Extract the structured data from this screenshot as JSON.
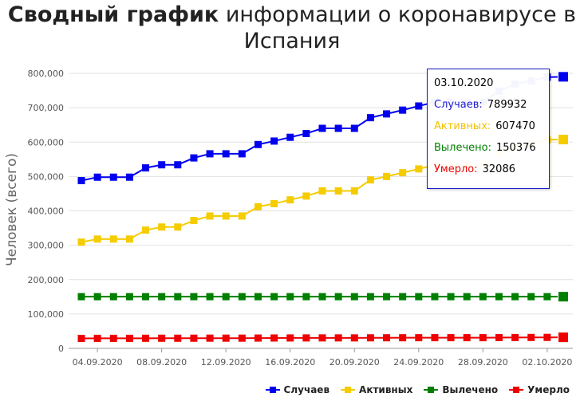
{
  "title_bold": "Сводный график",
  "title_rest": " информации о коронавирусе в",
  "title_line2": "Испания",
  "colors": {
    "cases": "#0000ee",
    "active": "#f5cc00",
    "recovered": "#007f00",
    "deaths": "#ee0000"
  },
  "tooltip": {
    "date": "03.10.2020",
    "rows": [
      {
        "label": "Случаев:",
        "value": "789932"
      },
      {
        "label": "Активных:",
        "value": "607470"
      },
      {
        "label": "Вылечено:",
        "value": "150376"
      },
      {
        "label": "Умерло:",
        "value": "32086"
      }
    ]
  },
  "chart_data": {
    "type": "line",
    "ylabel": "Человек (всего)",
    "ylim": [
      0,
      800000
    ],
    "yticks": [
      "0",
      "100,000",
      "200,000",
      "300,000",
      "400,000",
      "500,000",
      "600,000",
      "700,000",
      "800,000"
    ],
    "xtick_labels": [
      "04.09.2020",
      "08.09.2020",
      "12.09.2020",
      "16.09.2020",
      "20.09.2020",
      "24.09.2020",
      "28.09.2020",
      "02.10.2020"
    ],
    "x": [
      "03.09.2020",
      "04.09.2020",
      "05.09.2020",
      "06.09.2020",
      "07.09.2020",
      "08.09.2020",
      "09.09.2020",
      "10.09.2020",
      "11.09.2020",
      "12.09.2020",
      "13.09.2020",
      "14.09.2020",
      "15.09.2020",
      "16.09.2020",
      "17.09.2020",
      "18.09.2020",
      "19.09.2020",
      "20.09.2020",
      "21.09.2020",
      "22.09.2020",
      "23.09.2020",
      "24.09.2020",
      "25.09.2020",
      "26.09.2020",
      "27.09.2020",
      "28.09.2020",
      "29.09.2020",
      "30.09.2020",
      "01.10.2020",
      "02.10.2020",
      "03.10.2020"
    ],
    "series": [
      {
        "name": "Случаев",
        "values": [
          488000,
          498000,
          498000,
          498000,
          525000,
          534000,
          534000,
          554000,
          566000,
          566000,
          566000,
          593000,
          603000,
          614000,
          625000,
          640000,
          640000,
          640000,
          671000,
          682000,
          693000,
          705000,
          716000,
          716000,
          716000,
          716000,
          748000,
          769000,
          778000,
          789000,
          789932
        ]
      },
      {
        "name": "Активных",
        "values": [
          309000,
          318000,
          318000,
          318000,
          344000,
          353000,
          353000,
          372000,
          385000,
          385000,
          385000,
          412000,
          421000,
          432000,
          443000,
          458000,
          458000,
          458000,
          490000,
          500000,
          511000,
          522000,
          533000,
          533000,
          533000,
          533000,
          566000,
          586000,
          596000,
          607000,
          607470
        ]
      },
      {
        "name": "Вылечено",
        "values": [
          150376,
          150376,
          150376,
          150376,
          150376,
          150376,
          150376,
          150376,
          150376,
          150376,
          150376,
          150376,
          150376,
          150376,
          150376,
          150376,
          150376,
          150376,
          150376,
          150376,
          150376,
          150376,
          150376,
          150376,
          150376,
          150376,
          150376,
          150376,
          150376,
          150376,
          150376
        ]
      },
      {
        "name": "Умерло",
        "values": [
          29000,
          29200,
          29200,
          29200,
          29400,
          29500,
          29500,
          29600,
          29700,
          29700,
          29700,
          30000,
          30200,
          30300,
          30400,
          30500,
          30500,
          30500,
          30700,
          30800,
          30900,
          31000,
          31100,
          31100,
          31100,
          31100,
          31400,
          31600,
          31800,
          32000,
          32086
        ]
      }
    ]
  }
}
